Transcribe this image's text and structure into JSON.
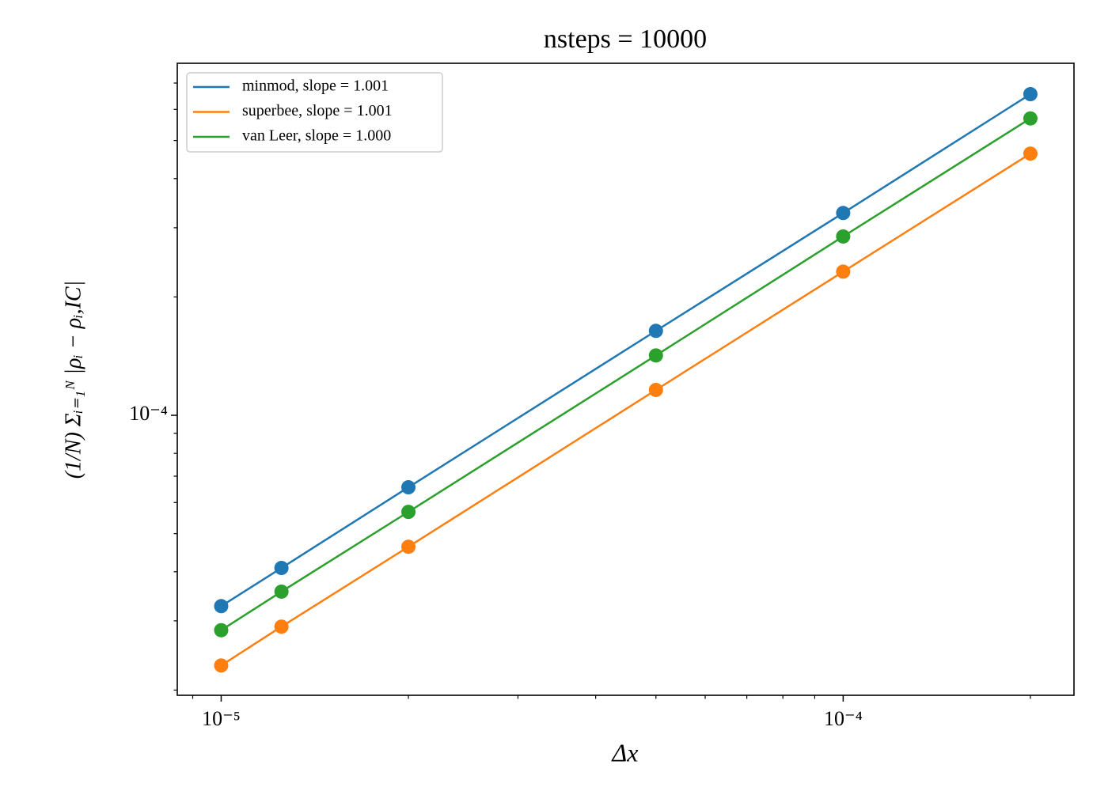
{
  "chart_data": {
    "type": "line",
    "title": "nsteps = 10000",
    "x_label": "Δx",
    "y_label": "(1/N) Σᵢ₌₁ᴺ |ρᵢ − ρᵢ,IC|",
    "x": [
      1e-05,
      1.25e-05,
      2e-05,
      5e-05,
      0.0001,
      0.0002
    ],
    "series": [
      {
        "name": "minmod, slope = 1.001",
        "color": "#1f77b4",
        "values": [
          3.27e-05,
          4.09e-05,
          6.56e-05,
          0.000164,
          0.000327,
          0.000656
        ]
      },
      {
        "name": "superbee, slope = 1.001",
        "color": "#ff7f0e",
        "values": [
          2.31e-05,
          2.9e-05,
          4.63e-05,
          0.000116,
          0.000232,
          0.000463
        ]
      },
      {
        "name": "van Leer, slope = 1.000",
        "color": "#2ca02c",
        "values": [
          2.84e-05,
          3.56e-05,
          5.68e-05,
          0.000142,
          0.000285,
          0.000569
        ]
      }
    ],
    "xscale": "log",
    "yscale": "log",
    "xlim": [
      8.5e-06,
      0.000235
    ],
    "ylim": [
      1.94e-05,
      0.000786
    ],
    "xticks": [
      {
        "value": 1e-05,
        "label": "10⁻⁵"
      },
      {
        "value": 0.0001,
        "label": "10⁻⁴"
      }
    ],
    "yticks": [
      {
        "value": 0.0001,
        "label": "10⁻⁴"
      }
    ],
    "xminorticks": [
      9e-06,
      2e-05,
      3e-05,
      4e-05,
      5e-05,
      6e-05,
      7e-05,
      8e-05,
      9e-05,
      0.0002
    ],
    "yminorticks": [
      2e-05,
      3e-05,
      4e-05,
      5e-05,
      6e-05,
      7e-05,
      8e-05,
      9e-05,
      0.0002,
      0.0003,
      0.0004,
      0.0005,
      0.0006,
      0.0007
    ],
    "legend": "upper left",
    "grid": false
  }
}
